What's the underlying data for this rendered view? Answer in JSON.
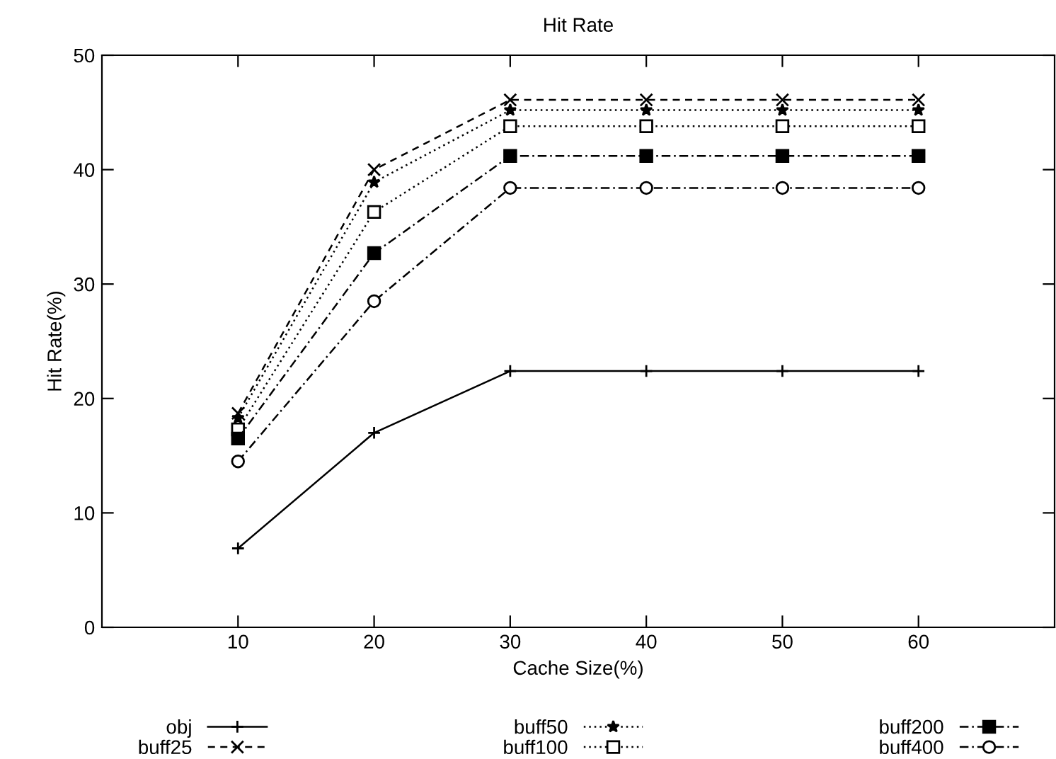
{
  "chart_data": {
    "type": "line",
    "title": "Hit Rate",
    "xlabel": "Cache Size(%)",
    "ylabel": "Hit Rate(%)",
    "x": [
      10,
      20,
      30,
      40,
      50,
      60
    ],
    "xlim": [
      0,
      70
    ],
    "xticks": [
      10,
      20,
      30,
      40,
      50,
      60
    ],
    "ylim": [
      0,
      50
    ],
    "yticks": [
      0,
      10,
      20,
      30,
      40,
      50
    ],
    "grid": false,
    "legend": "bottom",
    "series": [
      {
        "name": "obj",
        "color": "#000000",
        "marker": "plus",
        "line_style": "solid",
        "values": [
          6.9,
          17.0,
          22.4,
          22.4,
          22.4,
          22.4
        ]
      },
      {
        "name": "buff25",
        "color": "#000000",
        "marker": "cross",
        "line_style": "dashed",
        "values": [
          18.7,
          40.0,
          46.1,
          46.1,
          46.1,
          46.1
        ]
      },
      {
        "name": "buff50",
        "color": "#000000",
        "marker": "star",
        "line_style": "dotted",
        "values": [
          18.3,
          38.9,
          45.2,
          45.2,
          45.2,
          45.2
        ]
      },
      {
        "name": "buff100",
        "color": "#000000",
        "marker": "square open",
        "line_style": "dotted",
        "values": [
          17.3,
          36.3,
          43.8,
          43.8,
          43.8,
          43.8
        ]
      },
      {
        "name": "buff200",
        "color": "#000000",
        "marker": "square",
        "line_style": "dashdot",
        "values": [
          16.5,
          32.7,
          41.2,
          41.2,
          41.2,
          41.2
        ]
      },
      {
        "name": "buff400",
        "color": "#000000",
        "marker": "circle open",
        "line_style": "dashdot",
        "values": [
          14.5,
          28.5,
          38.4,
          38.4,
          38.4,
          38.4
        ]
      }
    ]
  }
}
